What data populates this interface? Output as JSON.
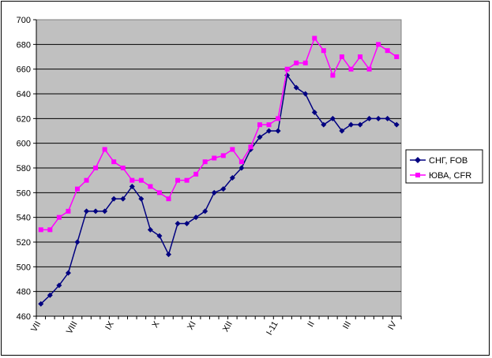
{
  "chart_data": {
    "type": "line",
    "title": "",
    "xlabel": "",
    "ylabel": "",
    "ylim": [
      460,
      700
    ],
    "y_ticks": [
      460,
      480,
      500,
      520,
      540,
      560,
      580,
      600,
      620,
      640,
      660,
      680,
      700
    ],
    "x_tick_labels": [
      "VII",
      "VIII",
      "IX",
      "X",
      "XI",
      "XII",
      "I-11",
      "II",
      "III",
      "IV"
    ],
    "x_tick_positions": [
      0,
      4,
      8,
      13,
      17,
      21,
      26,
      30,
      34,
      39
    ],
    "grid": true,
    "legend_position": "right",
    "plot_background": "#c0c0c0",
    "series": [
      {
        "name": "СНГ, FOB",
        "color": "#000080",
        "marker": "diamond",
        "values": [
          470,
          477,
          485,
          495,
          520,
          545,
          545,
          545,
          555,
          555,
          565,
          555,
          530,
          525,
          510,
          535,
          535,
          540,
          545,
          560,
          563,
          572,
          580,
          595,
          605,
          610,
          610,
          655,
          645,
          640,
          625,
          615,
          620,
          610,
          615,
          615,
          620,
          620,
          620,
          615
        ]
      },
      {
        "name": "ЮВА, CFR",
        "color": "#ff00ff",
        "marker": "square",
        "values": [
          530,
          530,
          540,
          545,
          563,
          570,
          580,
          595,
          585,
          580,
          570,
          570,
          565,
          560,
          555,
          570,
          570,
          575,
          585,
          588,
          590,
          595,
          585,
          597,
          615,
          615,
          620,
          660,
          665,
          665,
          685,
          675,
          655,
          670,
          660,
          670,
          660,
          680,
          675,
          670
        ]
      }
    ]
  }
}
